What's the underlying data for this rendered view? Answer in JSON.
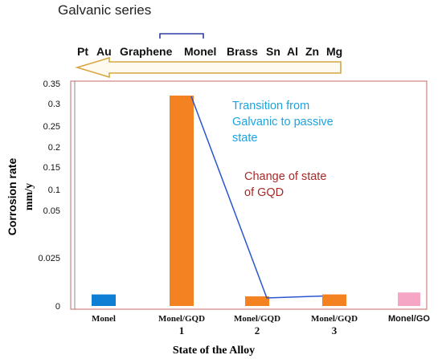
{
  "header": {
    "series_title": "Galvanic series",
    "members": [
      "Pt",
      "Au",
      "Graphene",
      "Monel",
      "Brass",
      "Sn",
      "Al",
      "Zn",
      "Mg"
    ]
  },
  "colors": {
    "bar_monel": "#0f7fd6",
    "bar_gqd": "#f58220",
    "bar_go": "#f4a6c4",
    "transition_line": "#2a55d0",
    "transition_text": "#1ca3e0",
    "change_text": "#a52a2a",
    "arrow_fill": "#fffaf0",
    "arrow_stroke": "#d7a640",
    "bracket": "#2f3fa0",
    "frame": "#c96a6a"
  },
  "annotations": {
    "transition": [
      "Transition from",
      "Galvanic to passive",
      "state"
    ],
    "change": [
      "Change of state",
      "of GQD"
    ]
  },
  "chart_data": {
    "type": "bar",
    "title": "",
    "xlabel": "State of the Alloy",
    "ylabel": [
      "Corrosion rate",
      "mm/y"
    ],
    "y_ticks": [
      "0",
      "0.025",
      "0.05",
      "0.1",
      "0.15",
      "0.2",
      "0.25",
      "0.3",
      "0.35"
    ],
    "categories": [
      [
        "Monel"
      ],
      [
        "Monel/GQD",
        "1"
      ],
      [
        "Monel/GQD",
        "2"
      ],
      [
        "Monel/GQD",
        "3"
      ],
      [
        "Monel/GO"
      ]
    ],
    "values": [
      0.006,
      0.32,
      0.005,
      0.006,
      0.007
    ],
    "bar_colors": [
      "bar_monel",
      "bar_gqd",
      "bar_gqd",
      "bar_gqd",
      "bar_go"
    ],
    "grid": false
  }
}
